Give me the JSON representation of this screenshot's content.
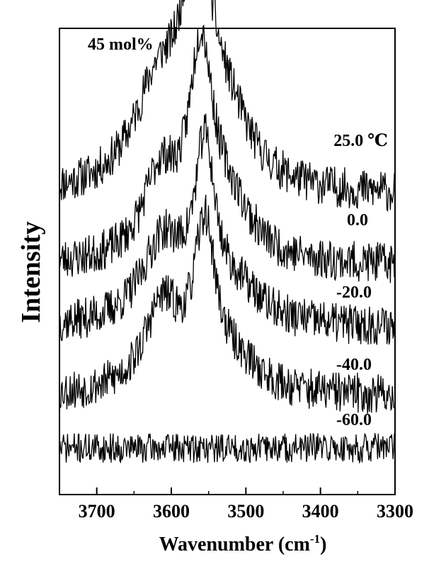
{
  "chart_data": {
    "type": "line",
    "title": "",
    "annotation": "45 mol%",
    "xlabel": "Wavenumber (cm",
    "xlabel_superscript": "-1",
    "xlabel_suffix": ")",
    "ylabel": "Intensity",
    "xlim": [
      3750,
      3300
    ],
    "x_reversed": true,
    "y_ticks": false,
    "grid": false,
    "x_ticks": [
      3700,
      3600,
      3500,
      3400,
      3300
    ],
    "x_tick_labels": [
      "3700",
      "3600",
      "3500",
      "3400",
      "3300"
    ],
    "series": [
      {
        "name": "25.0 ℃",
        "color": "#000000",
        "baseline": 1.62,
        "noise": 0.022,
        "seed": 11,
        "peaks": [
          {
            "center": 3565,
            "height": 1.5,
            "width": 22
          },
          {
            "center": 3618,
            "height": 0.62,
            "width": 40
          },
          {
            "center": 3525,
            "height": 0.38,
            "width": 38
          }
        ]
      },
      {
        "name": "0.0",
        "color": "#000000",
        "baseline": 1.17,
        "noise": 0.022,
        "seed": 23,
        "peaks": [
          {
            "center": 3560,
            "height": 1.3,
            "width": 20
          },
          {
            "center": 3615,
            "height": 0.52,
            "width": 28
          },
          {
            "center": 3520,
            "height": 0.3,
            "width": 35
          }
        ]
      },
      {
        "name": "-20.0",
        "color": "#000000",
        "baseline": 0.77,
        "noise": 0.022,
        "seed": 37,
        "peaks": [
          {
            "center": 3555,
            "height": 1.05,
            "width": 17
          },
          {
            "center": 3612,
            "height": 0.52,
            "width": 34
          },
          {
            "center": 3510,
            "height": 0.18,
            "width": 40
          }
        ]
      },
      {
        "name": "-40.0",
        "color": "#000000",
        "baseline": 0.33,
        "noise": 0.022,
        "seed": 53,
        "peaks": [
          {
            "center": 3555,
            "height": 1.0,
            "width": 18
          },
          {
            "center": 3612,
            "height": 0.55,
            "width": 30
          },
          {
            "center": 3510,
            "height": 0.15,
            "width": 38
          }
        ]
      },
      {
        "name": "-60.0",
        "color": "#000000",
        "baseline": 0.0,
        "noise": 0.016,
        "seed": 71,
        "peaks": []
      }
    ],
    "ylim": [
      -0.3,
      2.7
    ]
  }
}
